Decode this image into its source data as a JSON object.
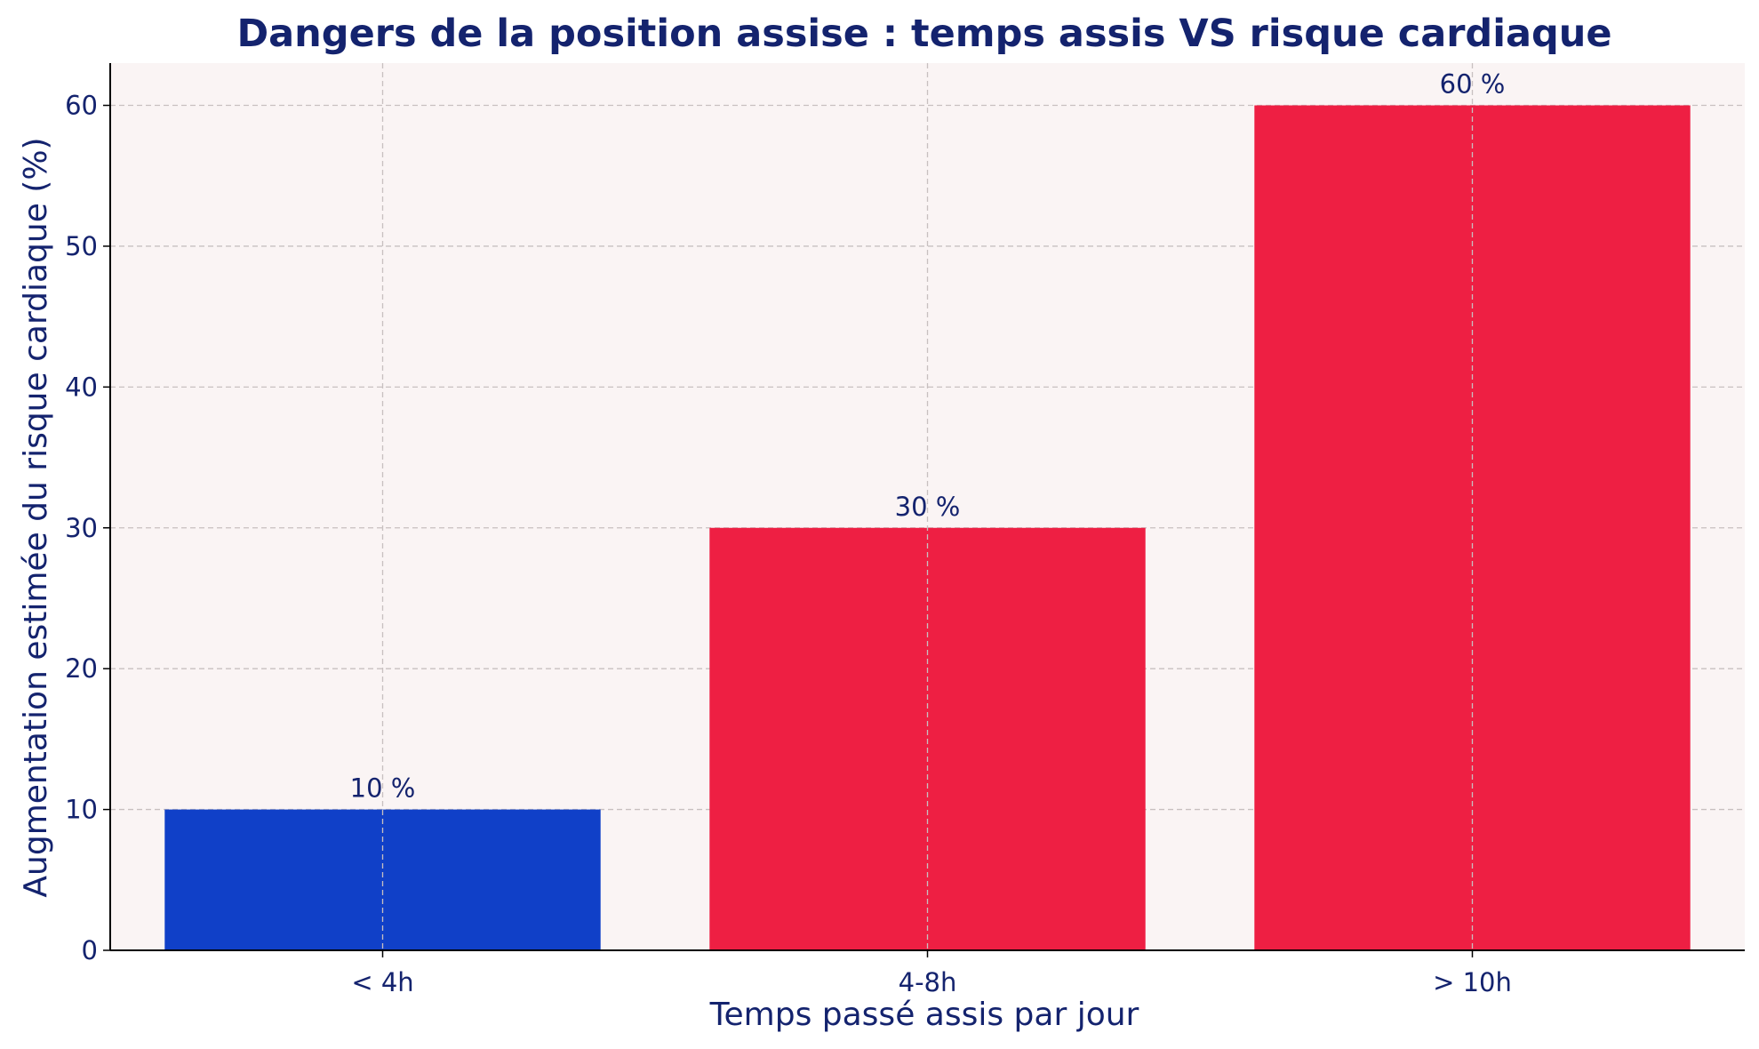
{
  "chart_data": {
    "type": "bar",
    "title": "Dangers de la position assise : temps assis VS risque cardiaque",
    "xlabel": "Temps passé assis par jour",
    "ylabel": "Augmentation estimée du risque cardiaque (%)",
    "categories": [
      "< 4h",
      "4-8h",
      "> 10h"
    ],
    "values": [
      10,
      30,
      60
    ],
    "value_labels": [
      "10 %",
      "30 %",
      "60 %"
    ],
    "bar_colors": [
      "#1040c8",
      "#ee1f43",
      "#ee1f43"
    ],
    "ylim": [
      0,
      63
    ],
    "yticks": [
      0,
      10,
      20,
      30,
      40,
      50,
      60
    ],
    "grid": true,
    "legend": "none",
    "colors": {
      "text": "#14236e",
      "plot_background": "#faf4f4",
      "grid": "#c8c0c0",
      "axis": "#000000"
    }
  }
}
